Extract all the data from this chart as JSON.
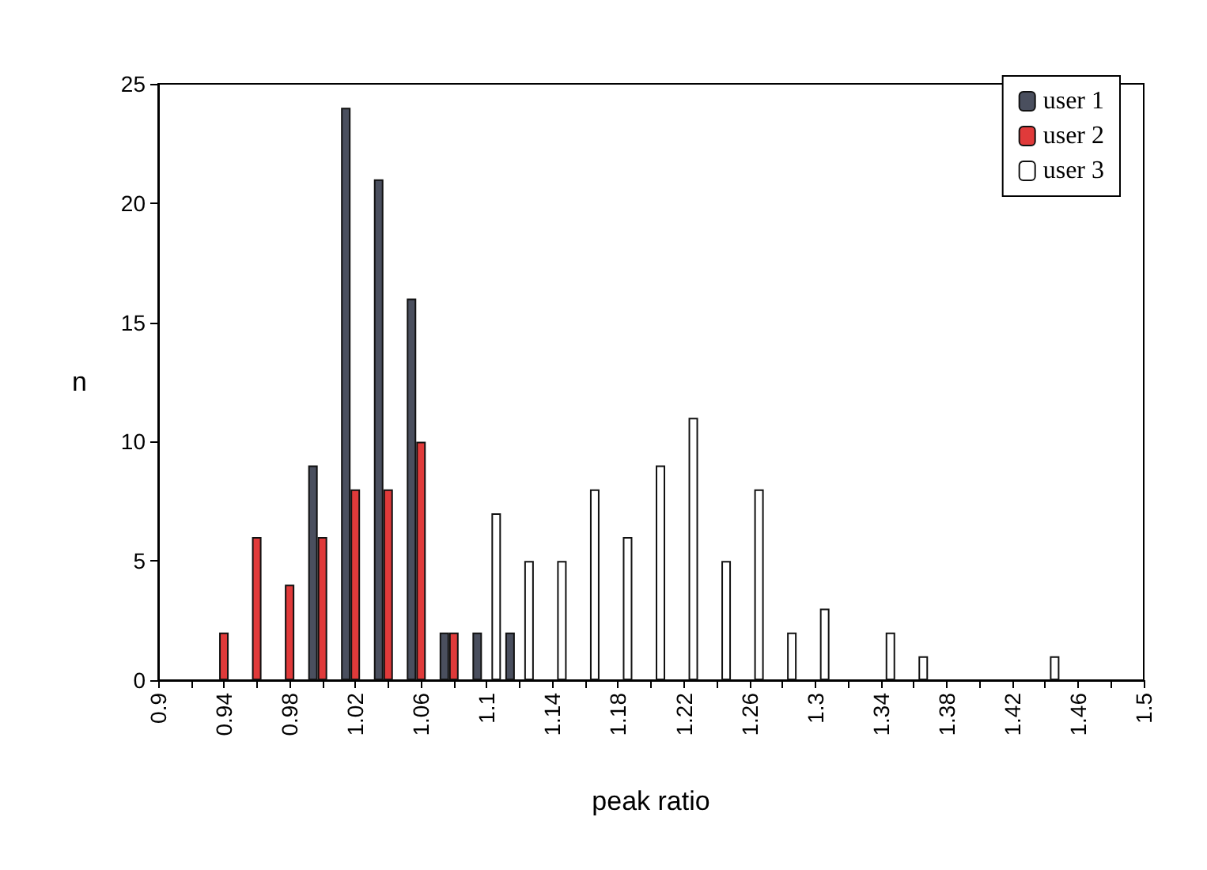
{
  "chart_data": {
    "type": "bar",
    "xlabel": "peak ratio",
    "ylabel": "n",
    "categories": [
      "0.9",
      null,
      "0.94",
      null,
      "0.98",
      null,
      "1.02",
      null,
      "1.06",
      null,
      "1.1",
      null,
      "1.14",
      null,
      "1.18",
      null,
      "1.22",
      null,
      "1.26",
      null,
      "1.3",
      null,
      "1.34",
      null,
      "1.38",
      null,
      "1.42",
      null,
      "1.46",
      null,
      "1.5"
    ],
    "series": [
      {
        "name": "user 1",
        "color": "#4a4f5e",
        "values": [
          null,
          null,
          null,
          null,
          null,
          9,
          24,
          21,
          16,
          2,
          2,
          2,
          null,
          null,
          null,
          null,
          null,
          null,
          null,
          null,
          null,
          null,
          null,
          null,
          null,
          null,
          null,
          null,
          null,
          null,
          null
        ]
      },
      {
        "name": "user 2",
        "color": "#e03a3a",
        "values": [
          null,
          null,
          2,
          6,
          4,
          6,
          8,
          8,
          10,
          2,
          null,
          null,
          null,
          null,
          null,
          null,
          null,
          null,
          null,
          null,
          null,
          null,
          null,
          null,
          null,
          null,
          null,
          null,
          null,
          null,
          null
        ]
      },
      {
        "name": "user 3",
        "color": "#ffffff",
        "values": [
          null,
          null,
          null,
          null,
          null,
          null,
          null,
          null,
          null,
          null,
          7,
          5,
          5,
          8,
          6,
          9,
          11,
          5,
          8,
          2,
          3,
          null,
          2,
          1,
          null,
          null,
          null,
          1,
          null,
          null,
          null
        ]
      }
    ],
    "ylim": [
      0,
      25
    ],
    "yticks": [
      0,
      5,
      10,
      15,
      20,
      25
    ],
    "grid": false,
    "legend": "top right"
  }
}
